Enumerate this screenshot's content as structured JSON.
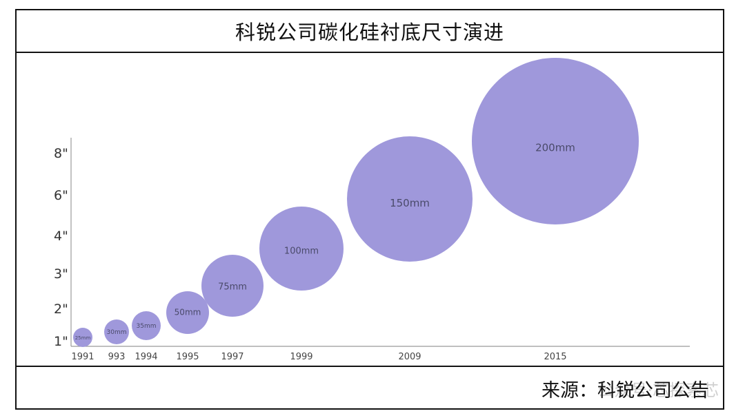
{
  "title": "科锐公司碳化硅衬底尺寸演进",
  "source": "来源：科锐公司公告",
  "watermark": "公众号·芯探索芯",
  "colors": {
    "bubble": "#9f98db",
    "axis": "#999999"
  },
  "chart_data": {
    "type": "scatter",
    "title": "科锐公司碳化硅衬底尺寸演进",
    "xlabel": "",
    "ylabel": "",
    "y_ticks": [
      "1\"",
      "2\"",
      "3\"",
      "4\"",
      "6\"",
      "8\""
    ],
    "x_ticks": [
      "1991",
      "993",
      "1994",
      "1995",
      "1997",
      "1999",
      "2009",
      "2015"
    ],
    "series": [
      {
        "points": [
          {
            "x": "1991",
            "y": "1\"",
            "label": "25mm",
            "size_mm": 25
          },
          {
            "x": "993",
            "y": "1\"",
            "label": "30mm",
            "size_mm": 30
          },
          {
            "x": "1994",
            "y": "1\"",
            "label": "35mm",
            "size_mm": 35
          },
          {
            "x": "1995",
            "y": "2\"",
            "label": "50mm",
            "size_mm": 50
          },
          {
            "x": "1997",
            "y": "3\"",
            "label": "75mm",
            "size_mm": 75
          },
          {
            "x": "1999",
            "y": "4\"",
            "label": "100mm",
            "size_mm": 100
          },
          {
            "x": "2009",
            "y": "6\"",
            "label": "150mm",
            "size_mm": 150
          },
          {
            "x": "2015",
            "y": "8\"",
            "label": "200mm",
            "size_mm": 200
          }
        ]
      }
    ],
    "grid": false,
    "legend": "none"
  }
}
